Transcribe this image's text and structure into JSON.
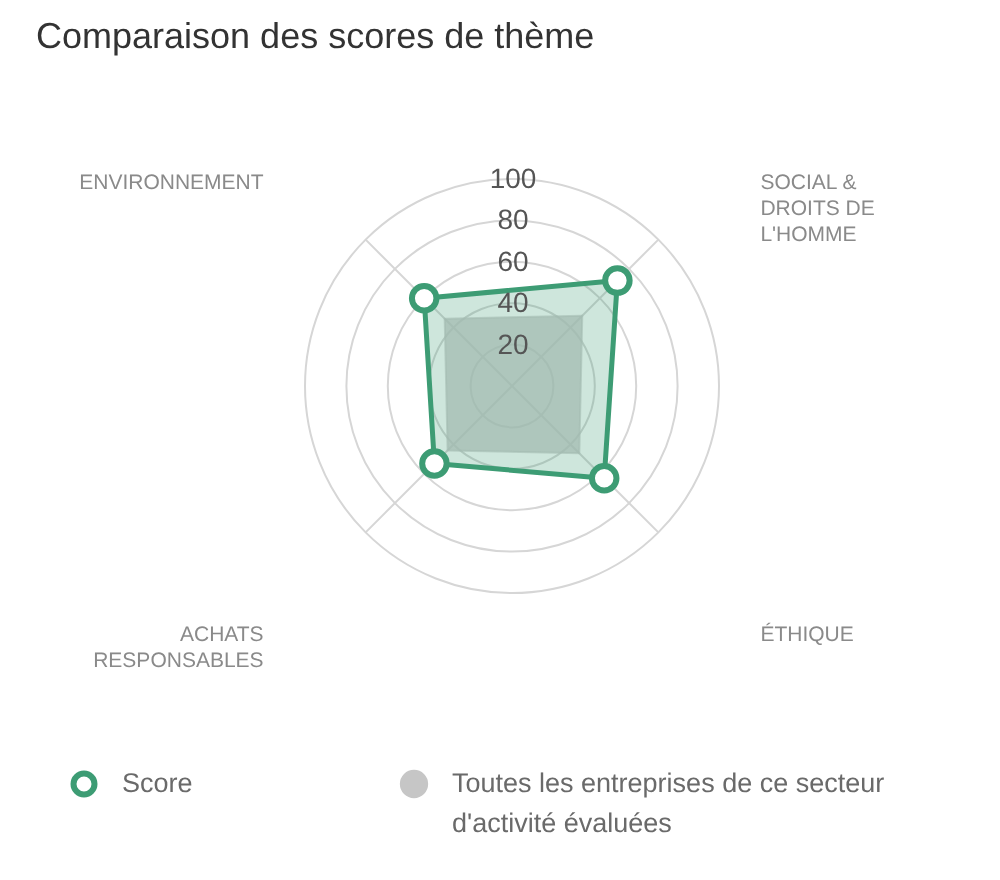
{
  "chart_data": {
    "type": "radar",
    "title": "Comparaison des scores de thème",
    "categories": [
      "SOCIAL & DROITS DE L'HOMME",
      "ÉTHIQUE",
      "ACHATS RESPONSABLES",
      "ENVIRONNEMENT"
    ],
    "series": [
      {
        "name": "Score",
        "color": "#3d9c74",
        "values": [
          72,
          63,
          53,
          60
        ],
        "marker": "circle"
      },
      {
        "name": "Toutes les entreprises de ce secteur d'activité évaluées",
        "color": "#c6c6c6",
        "values": [
          48,
          46,
          44,
          46
        ],
        "marker": "none"
      }
    ],
    "ylim": [
      0,
      100
    ],
    "yticks": [
      20,
      40,
      60,
      80,
      100
    ],
    "grid": true,
    "legend": "bottom"
  }
}
